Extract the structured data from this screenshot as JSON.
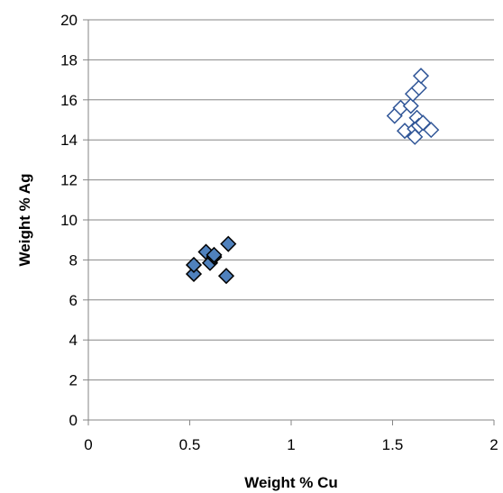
{
  "chart_data": {
    "type": "scatter",
    "title": "",
    "xlabel": "Weight % Cu",
    "ylabel": "Weight % Ag",
    "xlim": [
      0,
      2
    ],
    "ylim": [
      0,
      20
    ],
    "xticks": [
      0,
      0.5,
      1,
      1.5,
      2
    ],
    "xtick_labels": [
      "0",
      "0.5",
      "1",
      "1.5",
      "2"
    ],
    "yticks": [
      0,
      2,
      4,
      6,
      8,
      10,
      12,
      14,
      16,
      18,
      20
    ],
    "ytick_labels": [
      "0",
      "2",
      "4",
      "6",
      "8",
      "10",
      "12",
      "14",
      "16",
      "18",
      "20"
    ],
    "grid": "horizontal",
    "legend": "none",
    "series": [
      {
        "marker": "diamond-filled",
        "color": "#4F81BD",
        "stroke": "#000000",
        "points": [
          {
            "x": 0.52,
            "y": 7.3
          },
          {
            "x": 0.52,
            "y": 7.75
          },
          {
            "x": 0.58,
            "y": 8.4
          },
          {
            "x": 0.6,
            "y": 7.85
          },
          {
            "x": 0.62,
            "y": 8.15
          },
          {
            "x": 0.62,
            "y": 8.25
          },
          {
            "x": 0.68,
            "y": 7.2
          },
          {
            "x": 0.69,
            "y": 8.8
          }
        ]
      },
      {
        "marker": "diamond-open",
        "color": "#ffffff",
        "stroke": "#2F5597",
        "points": [
          {
            "x": 1.51,
            "y": 15.2
          },
          {
            "x": 1.54,
            "y": 15.6
          },
          {
            "x": 1.56,
            "y": 14.45
          },
          {
            "x": 1.59,
            "y": 15.7
          },
          {
            "x": 1.6,
            "y": 16.3
          },
          {
            "x": 1.61,
            "y": 14.55
          },
          {
            "x": 1.61,
            "y": 14.15
          },
          {
            "x": 1.62,
            "y": 15.1
          },
          {
            "x": 1.63,
            "y": 14.7
          },
          {
            "x": 1.63,
            "y": 16.6
          },
          {
            "x": 1.64,
            "y": 17.2
          },
          {
            "x": 1.65,
            "y": 14.85
          },
          {
            "x": 1.69,
            "y": 14.5
          }
        ]
      }
    ]
  }
}
